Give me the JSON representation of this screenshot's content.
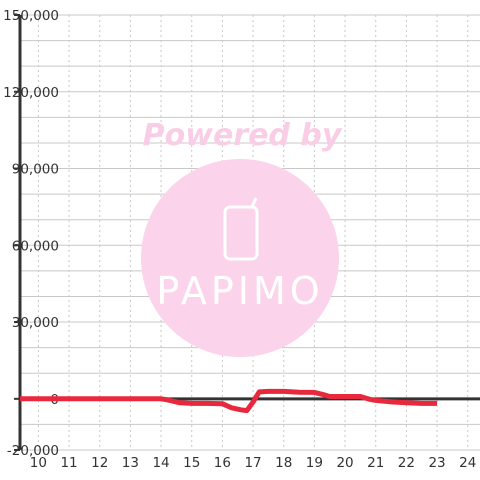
{
  "watermark": {
    "powered_by": "Powered by",
    "logo_text": "PAPIMO",
    "circle_color": "#fbd3ea"
  },
  "chart_data": {
    "type": "line",
    "title": "",
    "xlabel": "",
    "ylabel": "",
    "xlim": [
      9.4,
      24.4
    ],
    "ylim": [
      -20000,
      150000
    ],
    "x_ticks": [
      10,
      11,
      12,
      13,
      14,
      15,
      16,
      17,
      18,
      19,
      20,
      21,
      22,
      23,
      24
    ],
    "x_tick_labels": [
      "10",
      "11",
      "12",
      "13",
      "14",
      "15",
      "16",
      "17",
      "18",
      "19",
      "20",
      "21",
      "22",
      "23",
      "24"
    ],
    "y_ticks": [
      -20000,
      0,
      30000,
      60000,
      90000,
      120000,
      150000
    ],
    "y_tick_labels": [
      "-20,000",
      "0",
      "30,000",
      "60,000",
      "90,000",
      "120,000",
      "150,000"
    ],
    "y_minor_step": 10000,
    "grid": true,
    "legend": "none",
    "line_color": "#e8283c",
    "series": [
      {
        "x": [
          9.4,
          10,
          11,
          12,
          13,
          14,
          14.2,
          14.6,
          15,
          15.5,
          16,
          16.3,
          16.6,
          16.8,
          17,
          17.2,
          17.5,
          18,
          18.5,
          19,
          19.3,
          19.5,
          20,
          20.5,
          20.8,
          21,
          21.5,
          22,
          22.5,
          23
        ],
        "y": [
          0,
          0,
          0,
          0,
          0,
          0,
          -400,
          -1500,
          -1800,
          -1800,
          -1900,
          -3500,
          -4300,
          -4600,
          -1200,
          2700,
          2900,
          2900,
          2600,
          2500,
          1600,
          900,
          900,
          900,
          -200,
          -600,
          -1200,
          -1500,
          -1800,
          -1800
        ]
      }
    ]
  }
}
